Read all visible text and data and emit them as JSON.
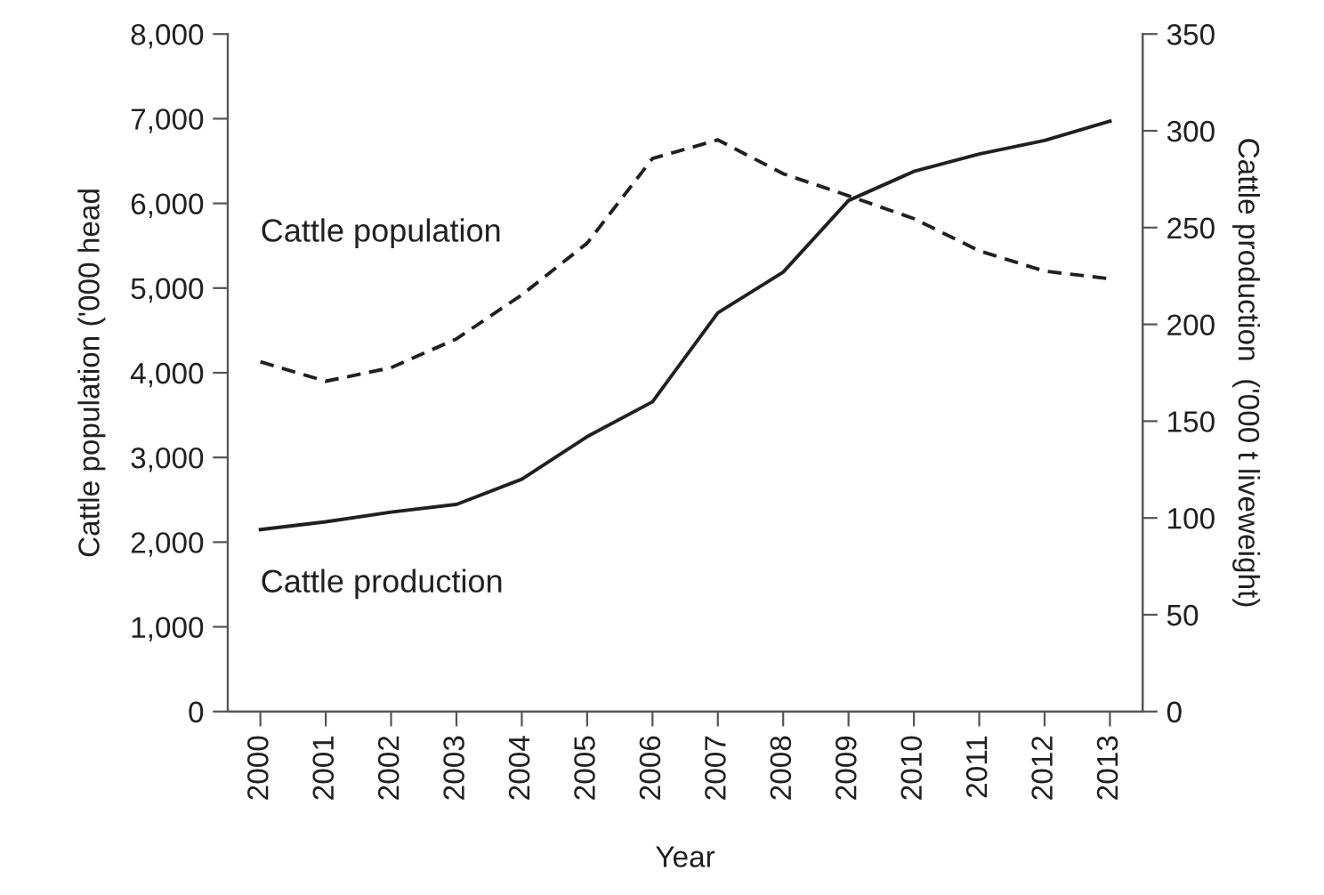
{
  "chart_data": {
    "type": "line",
    "xlabel": "Year",
    "ylabel": "Cattle population ('000 head",
    "y2label": "Cattle production  ('000 t liveweight)",
    "categories": [
      "2000",
      "2001",
      "2002",
      "2003",
      "2004",
      "2005",
      "2006",
      "2007",
      "2008",
      "2009",
      "2010",
      "2011",
      "2012",
      "2013"
    ],
    "series": [
      {
        "name": "Cattle population",
        "color": "#231f20",
        "line_style": "dashed",
        "values": [
          4130,
          3900,
          4060,
          4400,
          4920,
          5530,
          6530,
          6750,
          6350,
          6090,
          5820,
          5440,
          5200,
          5110
        ]
      },
      {
        "name": "Cattle production",
        "color": "#231f20",
        "line_style": "solid",
        "axis": "y2",
        "values": [
          94,
          98,
          103,
          107,
          120,
          142,
          160,
          206,
          227,
          264,
          279,
          288,
          295,
          305
        ]
      }
    ],
    "ylim": [
      0,
      8000
    ],
    "yticks": [
      {
        "value": 0,
        "label": "0"
      },
      {
        "value": 1000,
        "label": "1,000"
      },
      {
        "value": 2000,
        "label": "2,000"
      },
      {
        "value": 3000,
        "label": "3,000"
      },
      {
        "value": 4000,
        "label": "4,000"
      },
      {
        "value": 5000,
        "label": "5,000"
      },
      {
        "value": 6000,
        "label": "6,000"
      },
      {
        "value": 7000,
        "label": "7,000"
      },
      {
        "value": 8000,
        "label": "8,000"
      }
    ],
    "y2lim": [
      0,
      350
    ],
    "y2ticks": [
      0,
      50,
      100,
      150,
      200,
      250,
      300,
      350
    ],
    "grid": false,
    "legend": false,
    "marker": "none"
  }
}
